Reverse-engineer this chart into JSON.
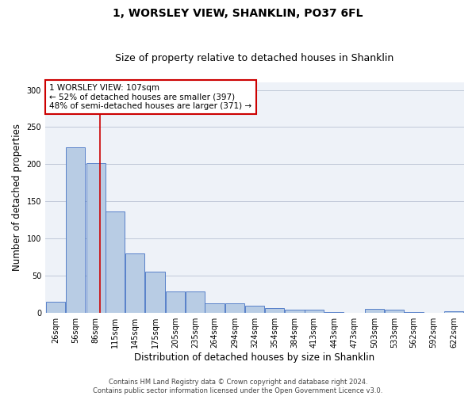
{
  "title": "1, WORSLEY VIEW, SHANKLIN, PO37 6FL",
  "subtitle": "Size of property relative to detached houses in Shanklin",
  "xlabel": "Distribution of detached houses by size in Shanklin",
  "ylabel": "Number of detached properties",
  "categories": [
    "26sqm",
    "56sqm",
    "86sqm",
    "115sqm",
    "145sqm",
    "175sqm",
    "205sqm",
    "235sqm",
    "264sqm",
    "294sqm",
    "324sqm",
    "354sqm",
    "384sqm",
    "413sqm",
    "443sqm",
    "473sqm",
    "503sqm",
    "533sqm",
    "562sqm",
    "592sqm",
    "622sqm"
  ],
  "values": [
    15,
    223,
    201,
    136,
    80,
    55,
    29,
    28,
    13,
    13,
    9,
    6,
    4,
    4,
    1,
    0,
    5,
    4,
    1,
    0,
    2
  ],
  "bar_color": "#b8cce4",
  "bar_edge_color": "#4472c4",
  "property_sqm": 107,
  "annotation_text_line1": "1 WORSLEY VIEW: 107sqm",
  "annotation_text_line2": "← 52% of detached houses are smaller (397)",
  "annotation_text_line3": "48% of semi-detached houses are larger (371) →",
  "annotation_box_color": "#ffffff",
  "annotation_box_edge_color": "#cc0000",
  "vline_color": "#cc0000",
  "ylim": [
    0,
    310
  ],
  "yticks": [
    0,
    50,
    100,
    150,
    200,
    250,
    300
  ],
  "grid_color": "#c0c8d8",
  "bg_color": "#eef2f8",
  "footer_line1": "Contains HM Land Registry data © Crown copyright and database right 2024.",
  "footer_line2": "Contains public sector information licensed under the Open Government Licence v3.0.",
  "title_fontsize": 10,
  "subtitle_fontsize": 9,
  "xlabel_fontsize": 8.5,
  "ylabel_fontsize": 8.5,
  "tick_fontsize": 7,
  "annotation_fontsize": 7.5,
  "footer_fontsize": 6
}
